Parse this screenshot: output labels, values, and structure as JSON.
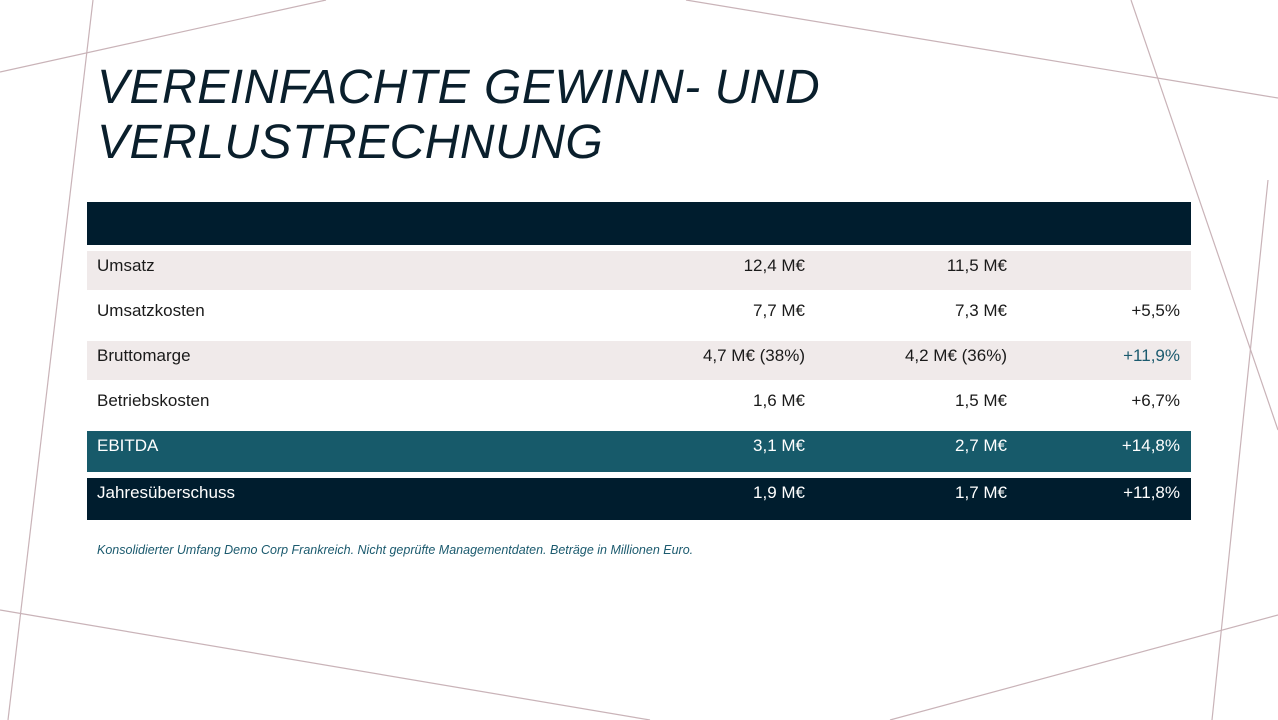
{
  "slide": {
    "title_line1": "VEREINFACHTE GEWINN- UND",
    "title_line2": "VERLUSTRECHNUNG"
  },
  "table": {
    "rows": [
      {
        "label": "Umsatz",
        "v1": "12,4 M€",
        "v2": "11,5 M€",
        "v3": ""
      },
      {
        "label": "Umsatzkosten",
        "v1": "7,7 M€",
        "v2": "7,3 M€",
        "v3": "+5,5%"
      },
      {
        "label": "Bruttomarge",
        "v1": "4,7 M€ (38%)",
        "v2": "4,2 M€ (36%)",
        "v3": "+11,9%"
      },
      {
        "label": "Betriebskosten",
        "v1": "1,6 M€",
        "v2": "1,5 M€",
        "v3": "+6,7%"
      },
      {
        "label": "EBITDA",
        "v1": "3,1 M€",
        "v2": "2,7 M€",
        "v3": "+14,8%"
      },
      {
        "label": "Jahresüberschuss",
        "v1": "1,9 M€",
        "v2": "1,7 M€",
        "v3": "+11,8%"
      }
    ]
  },
  "footnote": "Konsolidierter Umfang Demo Corp Frankreich. Nicht geprüfte Managementdaten. Beträge in Millionen Euro.",
  "colors": {
    "dark_navy": "#001d2e",
    "teal": "#175a6a",
    "shaded_row": "#f0eaea",
    "accent_text": "#1b5a6e",
    "deco_lines": "#c9b3b8"
  }
}
